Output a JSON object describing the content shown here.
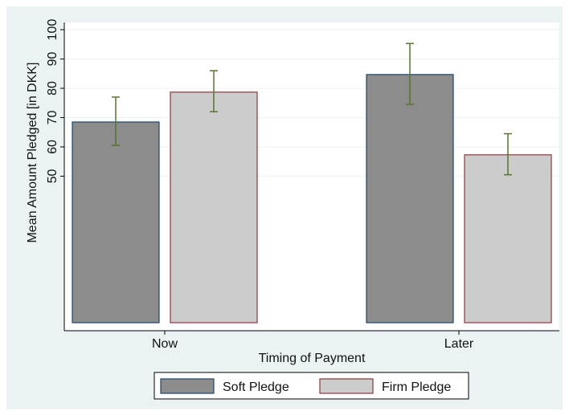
{
  "chart_data": {
    "type": "bar",
    "x_label": "Timing of Payment",
    "y_label": "Mean Amount Pledged [in DKK]",
    "categories": [
      "Now",
      "Later"
    ],
    "series": [
      {
        "name": "Soft Pledge",
        "color": "#8c8c8c",
        "edge": "#1a476f",
        "values": [
          68.5,
          84.7
        ],
        "error_low": [
          60.5,
          74.5
        ],
        "error_high": [
          77,
          95.3
        ]
      },
      {
        "name": "Firm Pledge",
        "color": "#cccccc",
        "edge": "#90353b",
        "values": [
          78.7,
          57.3
        ],
        "error_low": [
          72,
          50.5
        ],
        "error_high": [
          86,
          64.5
        ]
      }
    ],
    "error_color": "#55752f",
    "ylim": [
      0,
      100
    ],
    "yticks": [
      50,
      60,
      70,
      80,
      90,
      100
    ],
    "grid": true
  }
}
